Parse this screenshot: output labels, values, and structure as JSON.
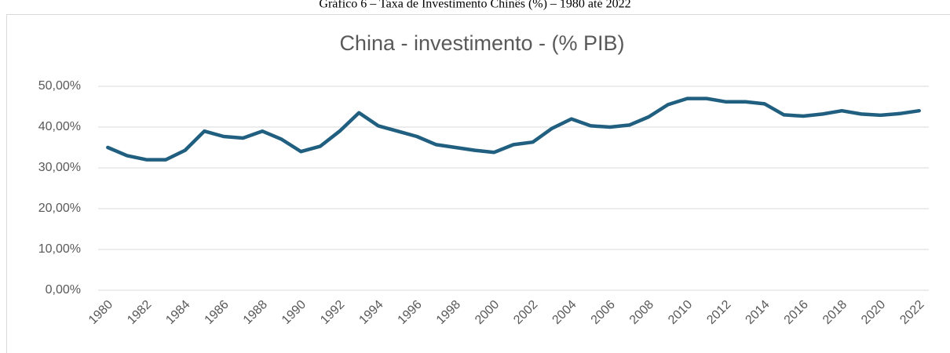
{
  "caption": "Gráfico 6 – Taxa de Investimento Chinês (%) – 1980 até 2022",
  "chart_data": {
    "type": "line",
    "title": "China - investimento - (% PIB)",
    "categories": [
      "1980",
      null,
      "1982",
      null,
      "1984",
      null,
      "1986",
      null,
      "1988",
      null,
      "1990",
      null,
      "1992",
      null,
      "1994",
      null,
      "1996",
      null,
      "1998",
      null,
      "2000",
      null,
      "2002",
      null,
      "2004",
      null,
      "2006",
      null,
      "2008",
      null,
      "2010",
      null,
      "2012",
      null,
      "2014",
      null,
      "2016",
      null,
      "2018",
      null,
      "2020",
      null,
      "2022"
    ],
    "values": [
      35,
      33,
      32,
      32,
      34.3,
      39,
      37.7,
      37.3,
      39,
      37,
      34,
      35.3,
      39,
      43.5,
      40.3,
      39,
      37.7,
      35.7,
      35,
      34.3,
      33.8,
      35.7,
      36.3,
      39.7,
      42,
      40.3,
      40,
      40.5,
      42.5,
      45.5,
      47,
      47,
      46.2,
      46.2,
      45.7,
      43,
      42.7,
      43.2,
      44,
      43.2,
      42.9,
      43.3,
      44
    ],
    "color": "#215f80",
    "ylim": [
      0,
      50
    ],
    "yticks": [
      {
        "value": 0,
        "label": "0,00%"
      },
      {
        "value": 10,
        "label": "10,00%"
      },
      {
        "value": 20,
        "label": "20,00%"
      },
      {
        "value": 30,
        "label": "30,00%"
      },
      {
        "value": 40,
        "label": "40,00%"
      },
      {
        "value": 50,
        "label": "50,00%"
      }
    ],
    "grid": true
  }
}
